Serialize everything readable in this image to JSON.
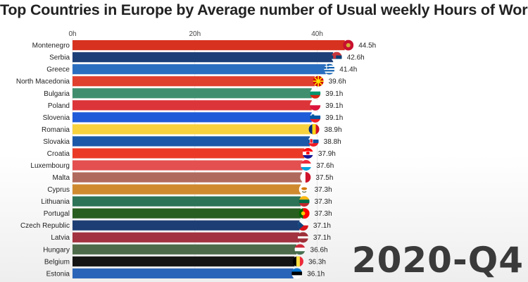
{
  "chart_data": {
    "type": "bar",
    "orientation": "horizontal",
    "title": "Top Countries in Europe by Average number of Usual weekly Hours of Work",
    "period": "2020-Q4",
    "xlim": [
      0,
      44.5
    ],
    "ticks": [
      {
        "value": 0,
        "label": "0h"
      },
      {
        "value": 20,
        "label": "20h"
      },
      {
        "value": 40,
        "label": "40h"
      }
    ],
    "bars": [
      {
        "category": "Montenegro",
        "value": 44.5,
        "label": "44.5h",
        "color": "#d7321f",
        "flag": "montenegro-flag-icon"
      },
      {
        "category": "Serbia",
        "value": 42.6,
        "label": "42.6h",
        "color": "#1d3f78",
        "flag": "serbia-flag-icon"
      },
      {
        "category": "Greece",
        "value": 41.4,
        "label": "41.4h",
        "color": "#2a6ec0",
        "flag": "greece-flag-icon"
      },
      {
        "category": "North Macedonia",
        "value": 39.6,
        "label": "39.6h",
        "color": "#e0402e",
        "flag": "north-macedonia-flag-icon"
      },
      {
        "category": "Bulgaria",
        "value": 39.1,
        "label": "39.1h",
        "color": "#3f8f6e",
        "flag": "bulgaria-flag-icon"
      },
      {
        "category": "Poland",
        "value": 39.1,
        "label": "39.1h",
        "color": "#dc3539",
        "flag": "poland-flag-icon"
      },
      {
        "category": "Slovenia",
        "value": 39.1,
        "label": "39.1h",
        "color": "#1f5bd8",
        "flag": "slovenia-flag-icon"
      },
      {
        "category": "Romania",
        "value": 38.9,
        "label": "38.9h",
        "color": "#f7d23e",
        "flag": "romania-flag-icon"
      },
      {
        "category": "Slovakia",
        "value": 38.8,
        "label": "38.8h",
        "color": "#1c58a8",
        "flag": "slovakia-flag-icon"
      },
      {
        "category": "Croatia",
        "value": 37.9,
        "label": "37.9h",
        "color": "#ea3a26",
        "flag": "croatia-flag-icon"
      },
      {
        "category": "Luxembourg",
        "value": 37.6,
        "label": "37.6h",
        "color": "#e44f4f",
        "flag": "luxembourg-flag-icon"
      },
      {
        "category": "Malta",
        "value": 37.5,
        "label": "37.5h",
        "color": "#b06a5d",
        "flag": "malta-flag-icon"
      },
      {
        "category": "Cyprus",
        "value": 37.3,
        "label": "37.3h",
        "color": "#cf8a30",
        "flag": "cyprus-flag-icon"
      },
      {
        "category": "Lithuania",
        "value": 37.3,
        "label": "37.3h",
        "color": "#2c7358",
        "flag": "lithuania-flag-icon"
      },
      {
        "category": "Portugal",
        "value": 37.3,
        "label": "37.3h",
        "color": "#285e1f",
        "flag": "portugal-flag-icon"
      },
      {
        "category": "Czech Republic",
        "value": 37.1,
        "label": "37.1h",
        "color": "#1d3e74",
        "flag": "czech-republic-flag-icon"
      },
      {
        "category": "Latvia",
        "value": 37.1,
        "label": "37.1h",
        "color": "#a33240",
        "flag": "latvia-flag-icon"
      },
      {
        "category": "Hungary",
        "value": 36.6,
        "label": "36.6h",
        "color": "#4d6b4a",
        "flag": "hungary-flag-icon"
      },
      {
        "category": "Belgium",
        "value": 36.3,
        "label": "36.3h",
        "color": "#141414",
        "flag": "belgium-flag-icon"
      },
      {
        "category": "Estonia",
        "value": 36.1,
        "label": "36.1h",
        "color": "#2a64b8",
        "flag": "estonia-flag-icon"
      }
    ]
  }
}
